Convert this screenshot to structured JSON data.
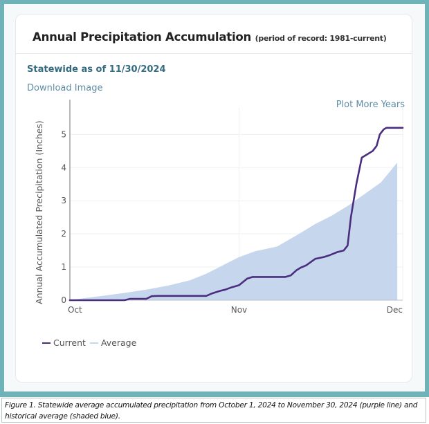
{
  "card": {
    "title": "Annual Precipitation Accumulation",
    "subtitle": "(period of record: 1981-current)",
    "statewide_label": "Statewide as of 11/30/2024",
    "download_link": "Download Image",
    "plot_more_link": "Plot More Years"
  },
  "caption": "Figure 1. Statewide average accumulated precipitation from October 1, 2024 to November 30, 2024 (purple line) and historical average (shaded blue).",
  "colors": {
    "frame": "#6fb3b8",
    "current": "#4b2d7f",
    "average_fill": "#c6d6ec",
    "grid": "#eef0f2",
    "link": "#5f8da6",
    "statewide": "#356b80"
  },
  "chart_data": {
    "type": "area",
    "title": "Annual Precipitation Accumulation",
    "xlabel": "",
    "ylabel": "Annual Accumulated Precipitation (Inches)",
    "x_unit": "days since Oct 1, 2024",
    "xlim": [
      0,
      61
    ],
    "ylim": [
      0,
      5.8
    ],
    "x_ticks": [
      {
        "value": 0,
        "label": "Oct"
      },
      {
        "value": 31,
        "label": "Nov"
      },
      {
        "value": 61,
        "label": "Dec"
      }
    ],
    "y_ticks": [
      0,
      1,
      2,
      3,
      4,
      5
    ],
    "grid": true,
    "legend": {
      "position": "bottom-left",
      "entries": [
        "Current",
        "Average"
      ]
    },
    "series": [
      {
        "name": "Average",
        "style": "area",
        "x": [
          0,
          3,
          6,
          10,
          14,
          18,
          22,
          25,
          28,
          31,
          34,
          38,
          42,
          45,
          48,
          51,
          54,
          57,
          60
        ],
        "y": [
          0,
          0.07,
          0.13,
          0.22,
          0.32,
          0.44,
          0.6,
          0.8,
          1.05,
          1.3,
          1.48,
          1.62,
          2.0,
          2.3,
          2.55,
          2.85,
          3.2,
          3.55,
          4.15
        ]
      },
      {
        "name": "Current",
        "style": "line",
        "x": [
          0,
          10,
          11,
          14,
          15,
          16,
          25,
          26,
          27.5,
          28.5,
          29.5,
          31,
          32.5,
          33.5,
          39.5,
          40.5,
          41.5,
          42.3,
          43.3,
          45,
          46.5,
          47.5,
          49,
          50.2,
          50.9,
          51.5,
          52.5,
          53.5,
          54.5,
          55.5,
          56.2,
          56.8,
          57.5,
          58,
          61
        ],
        "y": [
          0,
          0,
          0.04,
          0.04,
          0.12,
          0.13,
          0.13,
          0.2,
          0.28,
          0.32,
          0.38,
          0.45,
          0.65,
          0.7,
          0.7,
          0.75,
          0.9,
          0.98,
          1.05,
          1.25,
          1.3,
          1.35,
          1.45,
          1.5,
          1.65,
          2.5,
          3.5,
          4.3,
          4.4,
          4.5,
          4.65,
          5.0,
          5.15,
          5.2,
          5.2
        ]
      }
    ]
  }
}
